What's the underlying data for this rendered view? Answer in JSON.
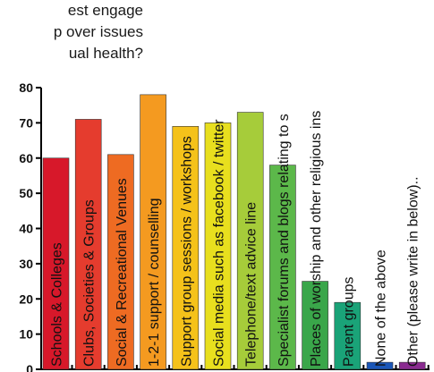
{
  "title_lines": [
    "est engage",
    "p over issues",
    "ual health?"
  ],
  "chart_data": {
    "type": "bar",
    "categories": [
      "Schools & Colleges",
      "Clubs, Societies & Groups",
      "Social & Recreational Venues",
      "1-2-1 support / counselling",
      "Support group sessions / workshops",
      "Social media such as facebook / twitter",
      "Telephone/text advice line",
      "Specialist forums and blogs relating to s",
      "Places of worship and other religious ins",
      "Parent groups",
      "None of the above",
      "Other (please write in below).."
    ],
    "values": [
      60,
      71,
      61,
      78,
      69,
      70,
      73,
      58,
      25,
      19,
      2,
      2
    ],
    "colors": [
      "#d7182a",
      "#e53c2e",
      "#ee6b22",
      "#f49a20",
      "#f5c21a",
      "#e8df1e",
      "#a6cc3a",
      "#5cb84a",
      "#3aa64a",
      "#1aa378",
      "#1a56b8",
      "#8a2b90"
    ],
    "ylim": [
      0,
      80
    ],
    "yticks": [
      0,
      10,
      20,
      30,
      40,
      50,
      60,
      70,
      80
    ],
    "grid": false,
    "legend": "none"
  }
}
